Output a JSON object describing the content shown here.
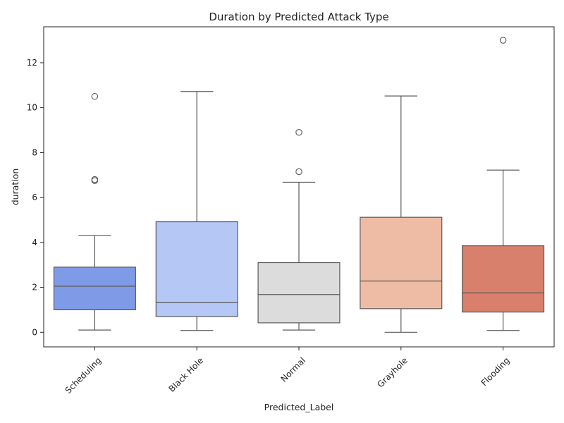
{
  "chart_data": {
    "type": "boxplot",
    "title": "Duration by Predicted Attack Type",
    "xlabel": "Predicted_Label",
    "ylabel": "duration",
    "ylim": [
      -0.65,
      13.6
    ],
    "yticks": [
      0,
      2,
      4,
      6,
      8,
      10,
      12
    ],
    "grid": false,
    "legend": "none",
    "categories": [
      "Scheduling",
      "Black Hole",
      "Normal",
      "Grayhole",
      "Flooding"
    ],
    "boxes": [
      {
        "category": "Scheduling",
        "color": "#7f9be8",
        "whisker_low": 0.1,
        "q1": 1.0,
        "median": 2.05,
        "q3": 2.9,
        "whisker_high": 4.3,
        "outliers": [
          6.75,
          6.8,
          10.5
        ]
      },
      {
        "category": "Black Hole",
        "color": "#b4c7f5",
        "whisker_low": 0.08,
        "q1": 0.7,
        "median": 1.32,
        "q3": 4.92,
        "whisker_high": 10.72,
        "outliers": []
      },
      {
        "category": "Normal",
        "color": "#dcdcdc",
        "whisker_low": 0.1,
        "q1": 0.42,
        "median": 1.68,
        "q3": 3.1,
        "whisker_high": 6.68,
        "outliers": [
          7.15,
          8.9
        ]
      },
      {
        "category": "Grayhole",
        "color": "#eebca5",
        "whisker_low": 0.0,
        "q1": 1.05,
        "median": 2.28,
        "q3": 5.12,
        "whisker_high": 10.52,
        "outliers": []
      },
      {
        "category": "Flooding",
        "color": "#d8806c",
        "whisker_low": 0.08,
        "q1": 0.9,
        "median": 1.75,
        "q3": 3.85,
        "whisker_high": 7.22,
        "outliers": [
          13.0
        ]
      }
    ]
  }
}
